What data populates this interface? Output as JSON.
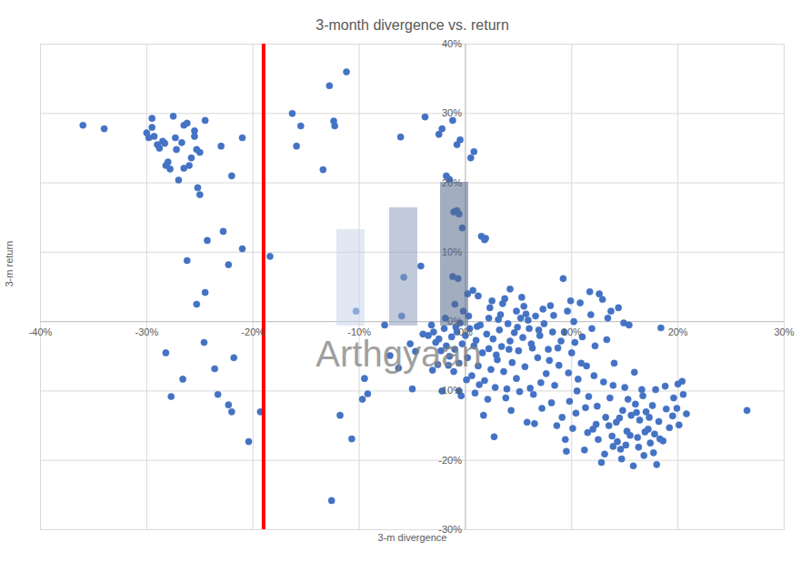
{
  "chart_data": {
    "type": "scatter",
    "title": "3-month divergence vs. return",
    "x_label": "3-m divergence",
    "y_label": "3-m return",
    "annotations": [
      {
        "text": "Arthgyaan"
      }
    ],
    "color": "#4472c4",
    "marker": "circle",
    "grid": true,
    "reference_lines": [
      {
        "x": -19,
        "color": "#ff0000"
      }
    ],
    "xlim": [
      -40,
      30
    ],
    "ylim": [
      -30,
      40
    ],
    "xticks": [
      {
        "value": -40,
        "label": "-40%"
      },
      {
        "value": -30,
        "label": "-30%"
      },
      {
        "value": -20,
        "label": "-20%"
      },
      {
        "value": -10,
        "label": "-10%"
      },
      {
        "value": 0,
        "label": "0%"
      },
      {
        "value": 10,
        "label": "10%"
      },
      {
        "value": 20,
        "label": "20%"
      },
      {
        "value": 30,
        "label": "30%"
      }
    ],
    "yticks": [
      {
        "value": -30,
        "label": "-30%"
      },
      {
        "value": -20,
        "label": "-20%"
      },
      {
        "value": -10,
        "label": "-10%"
      },
      {
        "value": 0,
        "label": "0%"
      },
      {
        "value": 10,
        "label": "10%"
      },
      {
        "value": 20,
        "label": "20%"
      },
      {
        "value": 30,
        "label": "30%"
      },
      {
        "value": 40,
        "label": "40%"
      }
    ],
    "x": [
      -36,
      -34,
      -30,
      -29.5,
      -29.5,
      -29,
      -29.3,
      -28.5,
      -28.3,
      -28,
      -28.2,
      -27.8,
      -27.5,
      -27.2,
      -27,
      -26.7,
      -26.5,
      -26.2,
      -26,
      -26.5,
      -25.8,
      -25.5,
      -25.3,
      -25,
      -25.5,
      -25.2,
      -25,
      -24.5,
      -23,
      -22,
      -21,
      -28.8,
      -29.8,
      -27.3,
      -26.2,
      -25.3,
      -24.5,
      -24.3,
      -22.8,
      -22.3,
      -21,
      -18.4,
      -28.2,
      -27.7,
      -26.6,
      -24.6,
      -23.6,
      -23.3,
      -22.3,
      -22,
      -21.8,
      -20.4,
      -19.3,
      -16.3,
      -15.5,
      -15.9,
      -13.4,
      -12.8,
      -12.4,
      -12.3,
      -11.2,
      -6.1,
      -3.8,
      -2.5,
      -2.2,
      -1.2,
      -0.8,
      -0.5,
      0.5,
      0.8,
      -1.8,
      -1.5,
      -1.1,
      -0.8,
      -0.6,
      -0.3,
      1.5,
      1.8,
      1.9,
      -5.8,
      -4.2,
      -1.2,
      -0.7,
      -1.0,
      -0.2,
      0.2,
      0.7,
      1.2,
      2.5,
      3.5,
      4.2,
      5.3,
      5.5,
      4.8,
      3.3,
      2.2,
      -0.5,
      -1.9,
      -3.2,
      -4,
      -5.2,
      -4.7,
      -6,
      -7.6,
      -10.3,
      -7.1,
      -6.3,
      -9.5,
      -9.7,
      -9.2,
      -11.8,
      -10.7,
      -12.6,
      -5.0,
      -3.1,
      -2.2,
      -1.6,
      -0.6,
      -0.4,
      -3.5,
      -3,
      -2.8,
      -2.5,
      -2.3,
      -2,
      -1.8,
      -1.5,
      -1.3,
      -1,
      -0.8,
      -0.6,
      -0.3,
      0,
      0.2,
      0.4,
      0.6,
      0.8,
      1,
      1.2,
      1.4,
      1.6,
      1.8,
      2,
      2.2,
      2.4,
      2.6,
      2.8,
      3,
      3.2,
      3.4,
      3.6,
      3.8,
      4,
      4.2,
      4.4,
      4.6,
      4.8,
      5,
      5.2,
      5.4,
      5.6,
      5.8,
      6,
      6.2,
      6.4,
      6.6,
      6.8,
      7,
      7.2,
      7.4,
      7.6,
      7.8,
      8,
      8.2,
      8.4,
      8.6,
      8.8,
      9,
      9.2,
      9.4,
      9.6,
      9.8,
      10,
      10.2,
      10.4,
      10.6,
      10.8,
      11,
      11.2,
      11.4,
      11.6,
      11.8,
      12,
      12.2,
      12.4,
      12.6,
      12.8,
      13,
      13.2,
      13.4,
      13.6,
      13.8,
      14,
      14.2,
      14.4,
      14.6,
      14.8,
      15,
      15.2,
      15.4,
      15.6,
      15.8,
      16,
      16.2,
      16.4,
      16.6,
      16.8,
      17,
      17.2,
      17.4,
      17.6,
      17.8,
      18,
      18.2,
      18.4,
      18.6,
      18.8,
      19.2,
      19.6,
      19.9,
      20,
      20.4,
      20.5,
      20.8,
      26.5,
      -2.6,
      -1.1,
      0.1,
      1.3,
      0.9,
      2.1,
      3.9,
      4.3,
      1.7,
      2.7,
      5.1,
      6.1,
      7.1,
      6.5,
      8.1,
      9.1,
      9.5,
      10.1,
      11.5,
      12.5,
      13.1,
      13.5,
      13.9,
      14.3,
      14.7,
      15.1,
      15.5,
      16.3,
      16.9,
      17.3,
      17.7,
      18.3,
      12.3,
      14.5,
      15.3,
      16.1,
      11.3,
      10.5,
      9.7,
      8.7,
      7.9,
      6.9,
      5.9,
      4.9,
      3.1,
      1.1,
      0.3,
      -0.9,
      2.9,
      4.1,
      6.3,
      8.3,
      9.9,
      11.7,
      12.9,
      13.7,
      14.9,
      13.3,
      11.9,
      10.3,
      9.3,
      7.3,
      5.7,
      3.7,
      2.3,
      10.9,
      12.1,
      13.9,
      15.9,
      16.7,
      17.9,
      18.9,
      19.5,
      20.1
    ],
    "values": [
      28.3,
      27.8,
      27.2,
      29.3,
      28,
      25.5,
      26.7,
      26,
      25.7,
      23,
      22.5,
      22,
      29.6,
      24.8,
      20.4,
      25.8,
      28.3,
      28.6,
      22.5,
      22.1,
      23.6,
      27.5,
      24.8,
      24.4,
      26.7,
      19.3,
      18.3,
      29,
      25.3,
      21,
      26.5,
      25,
      26.5,
      26.5,
      8.8,
      2.5,
      4.2,
      11.7,
      13,
      8.2,
      10.5,
      9.4,
      -4.5,
      -10.8,
      -8.3,
      -3,
      -6.8,
      -10.5,
      -12,
      -13,
      -5.2,
      -17.3,
      -13,
      30,
      28.2,
      25.3,
      21.9,
      34,
      28.9,
      28.2,
      36,
      26.6,
      29.5,
      27,
      27.8,
      29,
      25.5,
      26.2,
      23.6,
      24.5,
      21,
      20.5,
      15.8,
      16,
      15.5,
      13.5,
      12.3,
      11.8,
      12,
      6.4,
      8,
      6.5,
      6.2,
      2.5,
      1.5,
      4,
      4.5,
      3.7,
      3,
      2.6,
      4.7,
      3.5,
      2.2,
      1.5,
      1,
      0.5,
      -0.2,
      0.5,
      -0.5,
      -1.8,
      -3.2,
      -4.3,
      0.8,
      -0.5,
      1.5,
      -4.9,
      -6.7,
      -8.2,
      -11.2,
      -10.4,
      -13.5,
      -16.9,
      -25.8,
      -9.7,
      -7,
      -10,
      -6.3,
      -10,
      -10.7,
      -2,
      -1.5,
      -3,
      -2.5,
      -4.2,
      -1,
      -3.5,
      -5,
      -2.2,
      -4,
      -1.5,
      -6,
      -3.2,
      -2,
      -5.2,
      -1,
      -7.8,
      -3.5,
      -2.7,
      -6.4,
      -0.5,
      -4.5,
      -8.5,
      -1.8,
      -3.9,
      -6.9,
      -2.5,
      -9.5,
      -5.5,
      -1.2,
      -3.6,
      -7.2,
      -11,
      -0.3,
      -2.8,
      -5.9,
      -1.6,
      -8.2,
      -4.2,
      0.5,
      -2.3,
      -6.5,
      -14.5,
      -1,
      -3.2,
      -10.5,
      0.8,
      -5.2,
      -2,
      -12.5,
      -0.3,
      -7.5,
      -4,
      2.3,
      -1.5,
      -9.2,
      -15,
      -6.3,
      -2.8,
      6.2,
      -17,
      1.5,
      -11.5,
      -4.5,
      0,
      -13.2,
      -8.3,
      2.7,
      -2.2,
      -18.5,
      -6.4,
      -10.8,
      1,
      -15.5,
      -3.5,
      -12.2,
      4,
      -20.3,
      -8.7,
      -13.8,
      0.5,
      -11,
      -16.5,
      -6,
      -14.5,
      2,
      -18.4,
      -12.8,
      -9.5,
      -15.8,
      -0.5,
      -13.5,
      -20.8,
      -11.9,
      -16.7,
      -14.2,
      -9.8,
      -19.3,
      -13,
      -15.5,
      -17.5,
      -12.1,
      -16.2,
      -20.6,
      -14.4,
      -0.9,
      -17.2,
      -9.3,
      -15.3,
      -11,
      -12.5,
      -9,
      -8.6,
      -10.5,
      -13.3,
      -12.8,
      -6.2,
      -7.2,
      -8.4,
      -9.1,
      -10.3,
      -11.2,
      -9.7,
      -12.8,
      -13.5,
      -16.6,
      -10.1,
      -9.6,
      -8.8,
      -14.7,
      -11.7,
      -13.8,
      -18.7,
      -15.4,
      -16,
      -17,
      -19.1,
      -15,
      -18,
      -17.3,
      -19.8,
      -17.8,
      -16.4,
      -18.1,
      -15.9,
      -13.8,
      -18.9,
      -16.9,
      -14.8,
      -13.9,
      -11.2,
      -13.1,
      -12.4,
      -10,
      -7.4,
      -3.8,
      -5.6,
      -1.2,
      0.2,
      -0.8,
      0.3,
      -0.7,
      0.8,
      -0.8,
      -4.8,
      -4,
      -3.8,
      0.9,
      3,
      4.3,
      3.2,
      1.5,
      -0.2,
      -2.6,
      -1,
      -3,
      -1.5,
      1.8,
      1.1,
      3.3,
      2,
      -6,
      -7.8,
      -9.2,
      -7.3,
      -10.7,
      -9.8,
      -12.6,
      -13.6,
      -14.9
    ]
  }
}
